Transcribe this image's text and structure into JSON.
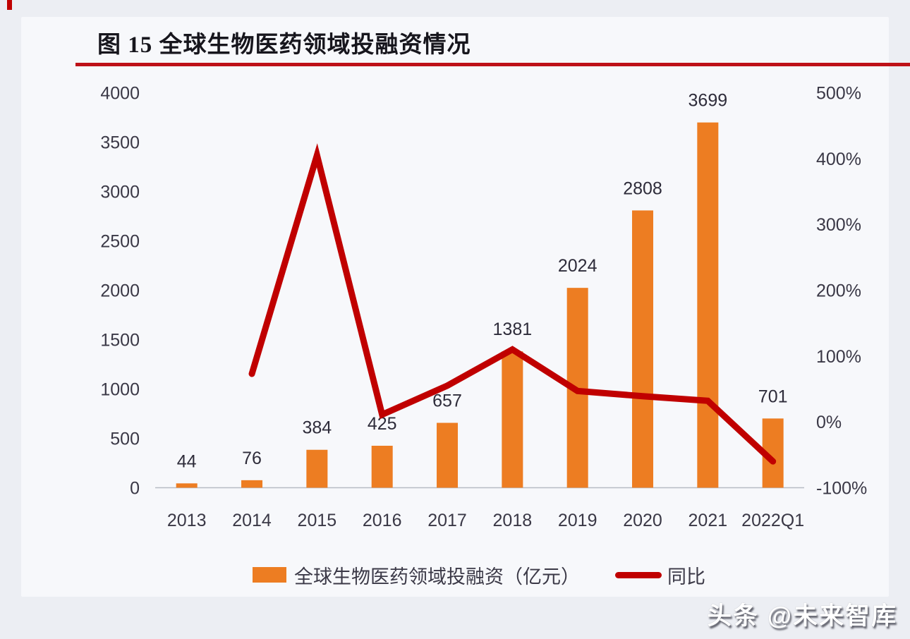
{
  "page": {
    "background": "#eceef3",
    "card_background": "#f7f8fb"
  },
  "header": {
    "figure_title": "图 15  全球生物医药领域投融资情况",
    "accent_color": "#C00000"
  },
  "watermark": {
    "text": "头条 @未来智库"
  },
  "legend": {
    "position": "bottom",
    "items": [
      {
        "label": "全球生物医药领域投融资（亿元）",
        "swatch": "bar",
        "color": "#ED7D22"
      },
      {
        "label": "同比",
        "swatch": "line",
        "color": "#C00000"
      }
    ]
  },
  "chart_data": {
    "type": "bar",
    "subtype": "combo-bar-line-dual-axis",
    "title": "图 15  全球生物医药领域投融资情况",
    "categories": [
      "2013",
      "2014",
      "2015",
      "2016",
      "2017",
      "2018",
      "2019",
      "2020",
      "2021",
      "2022Q1"
    ],
    "series": [
      {
        "name": "全球生物医药领域投融资（亿元）",
        "type": "bar",
        "yaxis": "left",
        "color": "#ED7D22",
        "values": [
          44,
          76,
          384,
          425,
          657,
          1381,
          2024,
          2808,
          3699,
          701
        ],
        "data_labels": [
          "44",
          "76",
          "384",
          "425",
          "657",
          "1381",
          "2024",
          "2808",
          "3699",
          "701"
        ]
      },
      {
        "name": "同比",
        "type": "line",
        "yaxis": "right",
        "color": "#C00000",
        "unit": "%",
        "values": [
          null,
          73,
          405,
          11,
          55,
          110,
          47,
          39,
          32,
          -60
        ]
      }
    ],
    "left_axis": {
      "min": 0,
      "max": 4000,
      "tick_step": 500,
      "tick_labels": [
        "4000",
        "3500",
        "3000",
        "2500",
        "2000",
        "1500",
        "1000",
        "500",
        "0"
      ]
    },
    "right_axis": {
      "min": -100,
      "max": 500,
      "tick_step": 100,
      "tick_labels": [
        "500%",
        "400%",
        "300%",
        "200%",
        "100%",
        "0%",
        "-100%"
      ]
    },
    "grid": false,
    "legend_position": "bottom",
    "text_color": "#3a3846",
    "axis_line_color": "#b7bbc4"
  }
}
